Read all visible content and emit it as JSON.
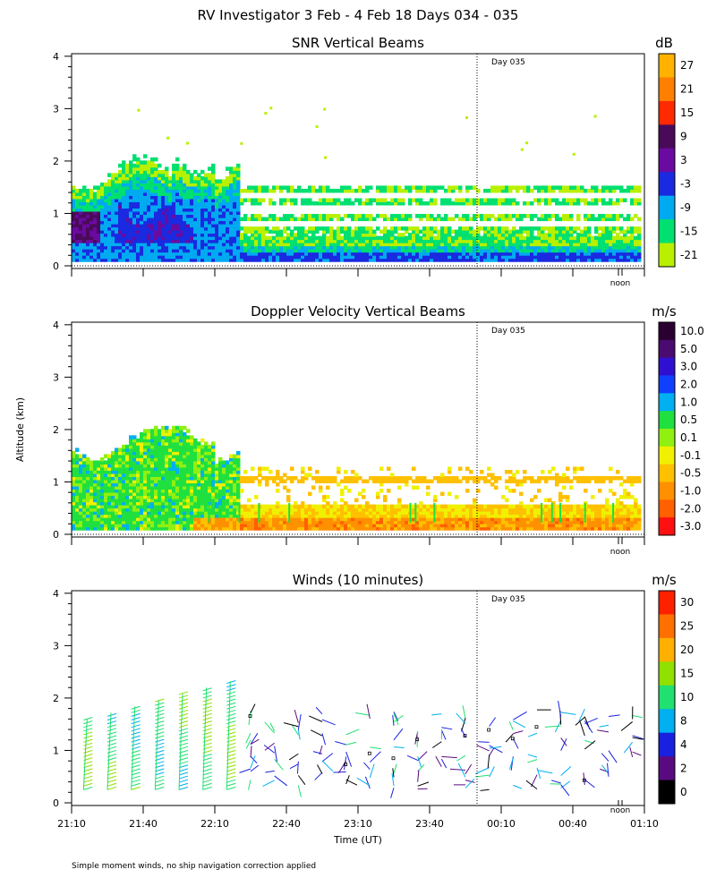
{
  "figure": {
    "title": "RV Investigator    3 Feb -   4 Feb 18 Days 034 - 035",
    "ylabel": "Altitude (km)",
    "xlabel": "Time (UT)",
    "footnote": "Simple moment winds, no ship navigation correction applied",
    "day_marker": "Day 035",
    "noon_label": "noon"
  },
  "chart_data": [
    {
      "type": "heatmap",
      "title": "SNR Vertical Beams",
      "colorbar_unit": "dB",
      "colorbar_labels": [
        "27",
        "21",
        "15",
        "9",
        "3",
        "-3",
        "-9",
        "-15",
        "-21"
      ],
      "colorbar_colors": [
        "#ffb300",
        "#ff8000",
        "#ff2a00",
        "#4a0a5a",
        "#6a0aa0",
        "#1a2ae0",
        "#00aaf0",
        "#00e070",
        "#b8f000"
      ],
      "ylim": [
        0,
        4
      ],
      "yticks": [
        "0",
        "1",
        "2",
        "3",
        "4"
      ],
      "xlim": [
        "21:10",
        "01:10"
      ]
    },
    {
      "type": "heatmap",
      "title": "Doppler Velocity Vertical Beams",
      "colorbar_unit": "m/s",
      "colorbar_labels": [
        "10.0",
        "5.0",
        "3.0",
        "2.0",
        "1.0",
        "0.5",
        "0.1",
        "-0.1",
        "-0.5",
        "-1.0",
        "-2.0",
        "-3.0"
      ],
      "colorbar_colors": [
        "#2a0030",
        "#4a0a70",
        "#3010d0",
        "#1040ff",
        "#00b0f0",
        "#20e040",
        "#90f010",
        "#f0f000",
        "#ffc000",
        "#ff9000",
        "#ff6000",
        "#ff1010"
      ],
      "ylim": [
        0,
        4
      ],
      "yticks": [
        "0",
        "1",
        "2",
        "3",
        "4"
      ],
      "xlim": [
        "21:10",
        "01:10"
      ]
    },
    {
      "type": "wind_barbs",
      "title": "Winds (10 minutes)",
      "colorbar_unit": "m/s",
      "colorbar_labels": [
        "30",
        "25",
        "20",
        "15",
        "10",
        "8",
        "4",
        "2",
        "0"
      ],
      "colorbar_colors": [
        "#ff2000",
        "#ff7000",
        "#ffb000",
        "#90e000",
        "#20e070",
        "#00b0f0",
        "#1a20e0",
        "#5a0a80",
        "#000000"
      ],
      "ylim": [
        0,
        4
      ],
      "yticks": [
        "0",
        "1",
        "2",
        "3",
        "4"
      ],
      "xlim": [
        "21:10",
        "01:10"
      ],
      "xticks": [
        "21:10",
        "21:40",
        "22:10",
        "22:40",
        "23:10",
        "23:40",
        "00:10",
        "00:40",
        "01:10"
      ]
    }
  ]
}
